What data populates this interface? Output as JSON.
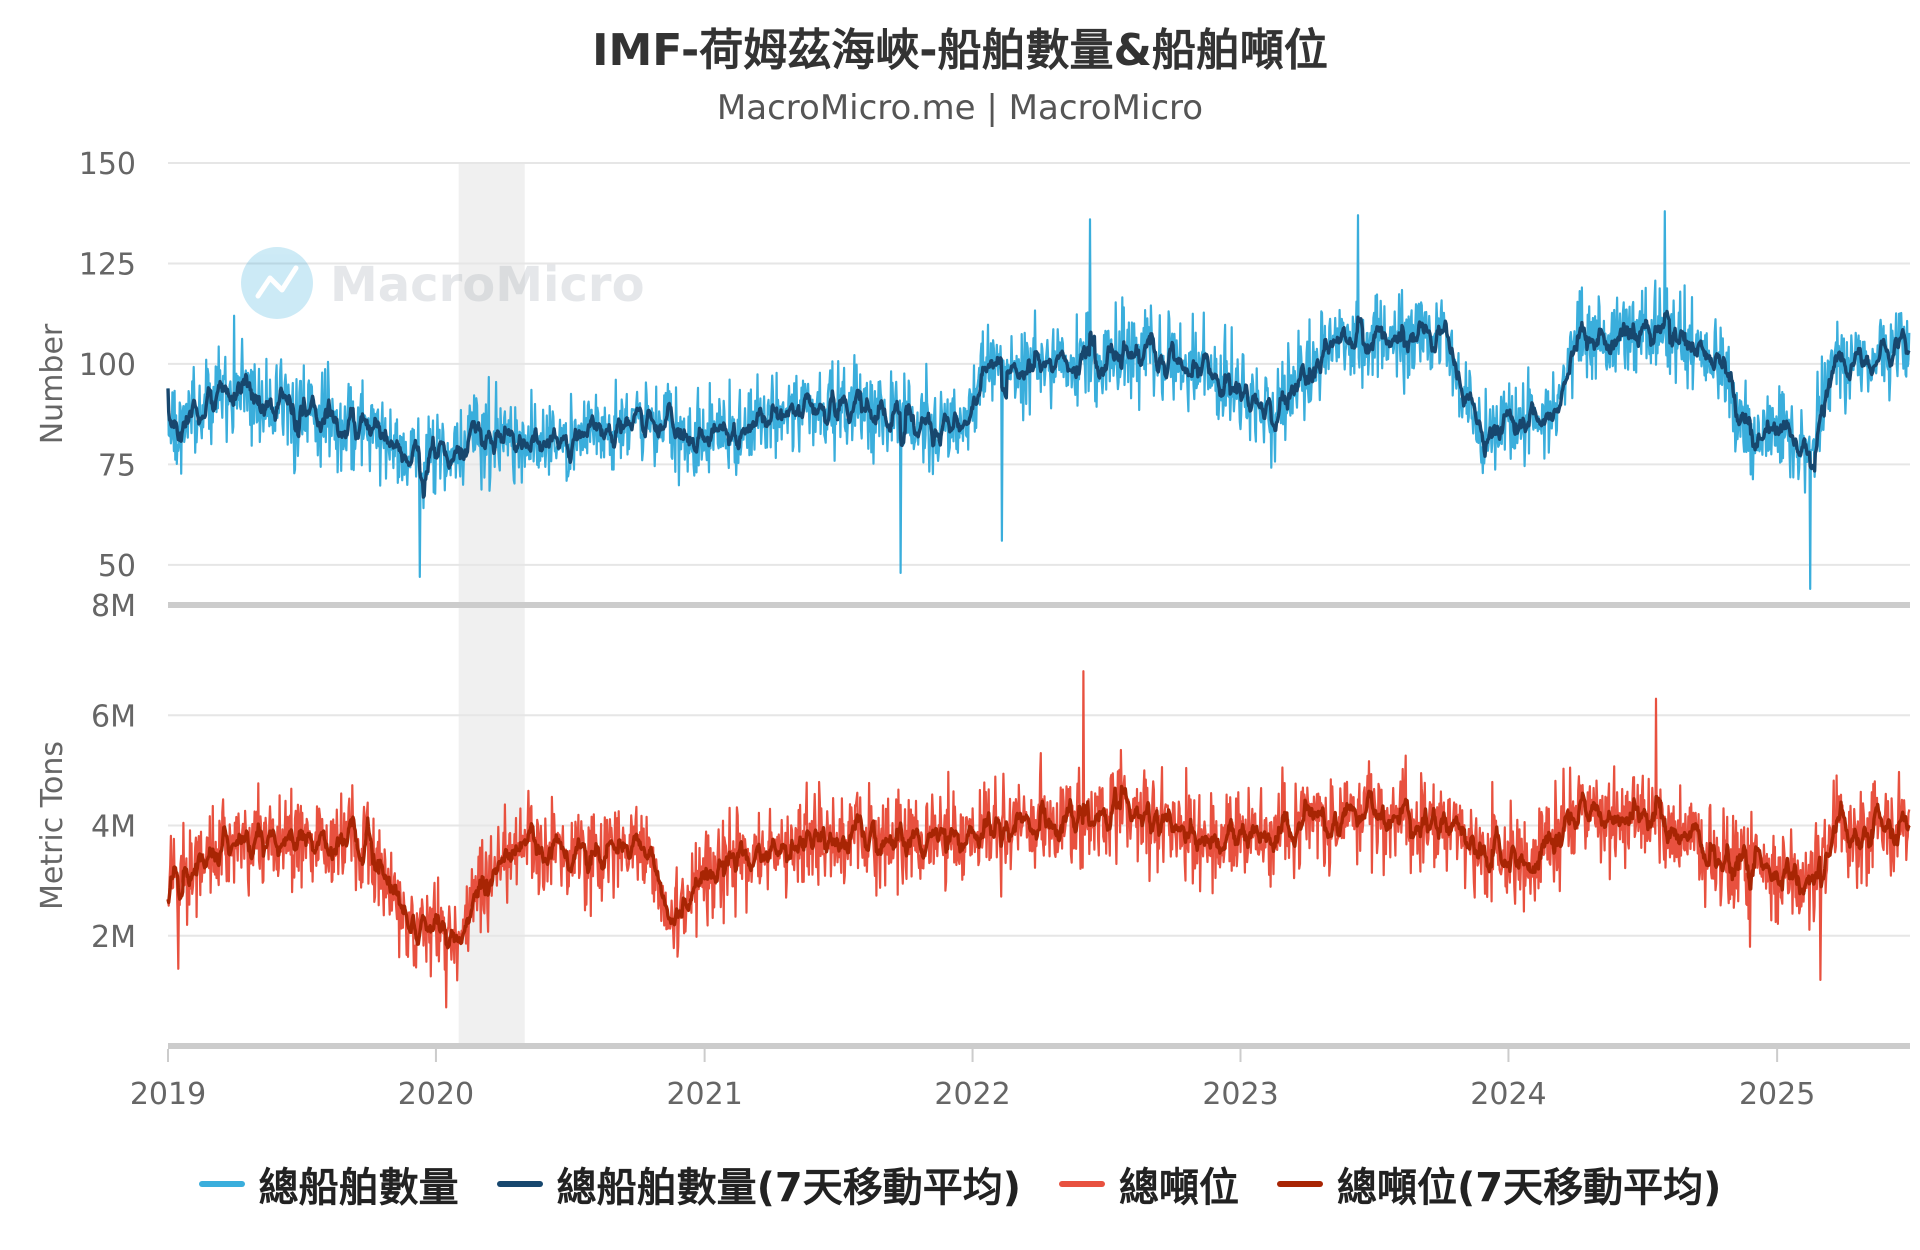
{
  "title": "IMF-荷姆茲海峽-船舶數量&船舶噸位",
  "subtitle": "MacroMicro.me | MacroMicro",
  "watermark": "MacroMicro",
  "colors": {
    "count_daily": "#3aaedc",
    "count_ma7": "#17476e",
    "tons_daily": "#e8513f",
    "tons_ma7": "#a82504",
    "grid": "#e6e6e6",
    "separator": "#cccccc",
    "recession_band": "#f0f0f0"
  },
  "chart_data": [
    {
      "type": "line",
      "ylabel": "Number",
      "ylim": [
        40,
        150
      ],
      "yticks": [
        50,
        75,
        100,
        125,
        150
      ],
      "ytick_labels": [
        "50",
        "75",
        "100",
        "125",
        "150"
      ],
      "xlim": [
        "2019-01-01",
        "2025-07-01"
      ],
      "grid": true,
      "shaded_period": [
        "2020-02-01",
        "2020-05-01"
      ],
      "series": [
        {
          "name": "總船舶數量",
          "color_key": "count_daily",
          "daily_range": [
            "2019-01-01",
            "2025-06-30"
          ],
          "anchors": [
            [
              "2019-01-01",
              82
            ],
            [
              "2019-04-01",
              93
            ],
            [
              "2019-07-01",
              88
            ],
            [
              "2019-09-01",
              86
            ],
            [
              "2019-12-01",
              75
            ],
            [
              "2020-03-01",
              83
            ],
            [
              "2020-06-01",
              80
            ],
            [
              "2020-10-01",
              87
            ],
            [
              "2020-12-15",
              82
            ],
            [
              "2021-03-01",
              85
            ],
            [
              "2021-06-01",
              90
            ],
            [
              "2021-09-01",
              87
            ],
            [
              "2021-11-15",
              85
            ],
            [
              "2021-12-31",
              88
            ],
            [
              "2022-01-15",
              99
            ],
            [
              "2022-06-01",
              101
            ],
            [
              "2022-09-01",
              103
            ],
            [
              "2022-12-01",
              96
            ],
            [
              "2023-02-15",
              87
            ],
            [
              "2023-05-01",
              104
            ],
            [
              "2023-08-01",
              107
            ],
            [
              "2023-10-01",
              106
            ],
            [
              "2023-11-20",
              84
            ],
            [
              "2024-03-01",
              86
            ],
            [
              "2024-04-01",
              105
            ],
            [
              "2024-08-01",
              107
            ],
            [
              "2024-10-15",
              102
            ],
            [
              "2024-11-15",
              82
            ],
            [
              "2025-01-15",
              84
            ],
            [
              "2025-02-15",
              75
            ],
            [
              "2025-03-15",
              100
            ],
            [
              "2025-06-30",
              104
            ]
          ],
          "spread": 11,
          "spikes": [
            [
              "2019-04-01",
              112
            ],
            [
              "2019-12-10",
              47
            ],
            [
              "2022-06-10",
              136
            ],
            [
              "2021-09-25",
              48
            ],
            [
              "2022-02-10",
              56
            ],
            [
              "2023-06-10",
              137
            ],
            [
              "2024-08-01",
              138
            ],
            [
              "2025-02-15",
              44
            ]
          ]
        },
        {
          "name": "總船舶數量(7天移動平均)",
          "color_key": "count_ma7",
          "moving_average_of": "總船舶數量",
          "window": 7
        }
      ]
    },
    {
      "type": "line",
      "ylabel": "Metric Tons",
      "ylim": [
        0,
        8000000
      ],
      "yticks": [
        2000000,
        4000000,
        6000000,
        8000000
      ],
      "ytick_labels": [
        "2M",
        "4M",
        "6M",
        "8M"
      ],
      "xlim": [
        "2019-01-01",
        "2025-07-01"
      ],
      "xticks": [
        "2019-01-01",
        "2020-01-01",
        "2021-01-01",
        "2022-01-01",
        "2023-01-01",
        "2024-01-01",
        "2025-01-01"
      ],
      "xtick_labels": [
        "2019",
        "2020",
        "2021",
        "2022",
        "2023",
        "2024",
        "2025"
      ],
      "grid": true,
      "shaded_period": [
        "2020-02-01",
        "2020-05-01"
      ],
      "series": [
        {
          "name": "總噸位",
          "color_key": "tons_daily",
          "daily_range": [
            "2019-01-01",
            "2025-06-30"
          ],
          "anchors": [
            [
              "2019-01-01",
              2900000
            ],
            [
              "2019-04-01",
              3700000
            ],
            [
              "2019-07-01",
              3800000
            ],
            [
              "2019-10-01",
              3600000
            ],
            [
              "2019-12-01",
              2200000
            ],
            [
              "2020-02-01",
              2000000
            ],
            [
              "2020-04-01",
              3600000
            ],
            [
              "2020-07-01",
              3400000
            ],
            [
              "2020-10-01",
              3700000
            ],
            [
              "2020-11-15",
              2400000
            ],
            [
              "2021-01-15",
              3200000
            ],
            [
              "2021-06-01",
              3700000
            ],
            [
              "2021-12-01",
              3800000
            ],
            [
              "2022-04-01",
              4100000
            ],
            [
              "2022-07-01",
              4200000
            ],
            [
              "2022-09-01",
              4200000
            ],
            [
              "2022-12-01",
              3600000
            ],
            [
              "2023-03-01",
              4000000
            ],
            [
              "2023-06-01",
              4200000
            ],
            [
              "2023-10-01",
              4000000
            ],
            [
              "2023-11-20",
              3500000
            ],
            [
              "2024-02-01",
              3300000
            ],
            [
              "2024-04-01",
              4200000
            ],
            [
              "2024-08-01",
              4000000
            ],
            [
              "2024-11-01",
              3300000
            ],
            [
              "2025-02-15",
              3000000
            ],
            [
              "2025-03-15",
              3800000
            ],
            [
              "2025-06-30",
              4000000
            ]
          ],
          "spread": 850000,
          "spikes": [
            [
              "2019-01-15",
              1400000
            ],
            [
              "2020-01-15",
              700000
            ],
            [
              "2022-06-01",
              6800000
            ],
            [
              "2024-07-20",
              6300000
            ],
            [
              "2024-11-25",
              1800000
            ],
            [
              "2025-03-01",
              1200000
            ]
          ]
        },
        {
          "name": "總噸位(7天移動平均)",
          "color_key": "tons_ma7",
          "moving_average_of": "總噸位",
          "window": 7
        }
      ]
    }
  ]
}
